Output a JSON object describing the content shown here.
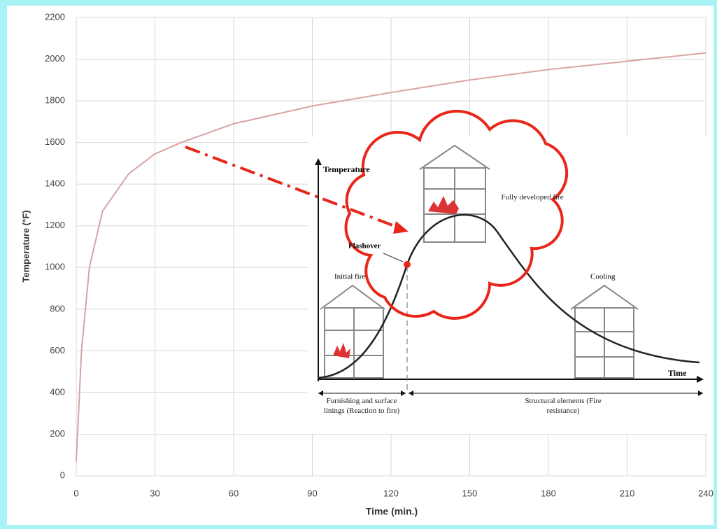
{
  "chart_data": {
    "type": "line",
    "y_label": "Temperature (°F)",
    "x_label": "Time (min.)",
    "x": [
      0,
      2,
      5,
      10,
      20,
      30,
      40,
      60,
      90,
      120,
      150,
      180,
      210,
      240
    ],
    "series": [
      {
        "color": "#d9a3a3",
        "values": [
          68,
          600,
          1000,
          1270,
          1450,
          1545,
          1600,
          1690,
          1775,
          1840,
          1900,
          1950,
          1990,
          2030
        ]
      }
    ],
    "xlim": [
      0,
      240
    ],
    "xticks": [
      0,
      30,
      60,
      90,
      120,
      150,
      180,
      210,
      240
    ],
    "ylim": [
      0,
      2200
    ],
    "yticks": [
      0,
      200,
      400,
      600,
      800,
      1000,
      1200,
      1400,
      1600,
      1800,
      2000,
      2200
    ],
    "grid": true
  },
  "inset": {
    "y_axis": "Temperature",
    "x_axis": "Time",
    "flashover": "Flashover",
    "initial": "Initial fire",
    "developed": "Fully developed fire",
    "cooling": "Cooling",
    "left_phase": "Furnishing and surface linings (Reaction to fire)",
    "right_phase": "Structural elements (Fire resistance)"
  }
}
